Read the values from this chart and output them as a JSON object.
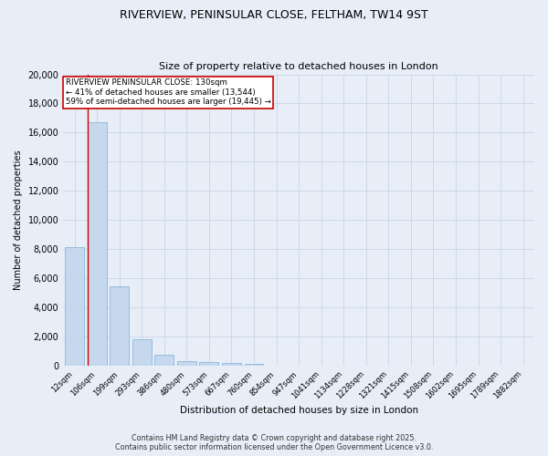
{
  "title_line1": "RIVERVIEW, PENINSULAR CLOSE, FELTHAM, TW14 9ST",
  "title_line2": "Size of property relative to detached houses in London",
  "xlabel": "Distribution of detached houses by size in London",
  "ylabel": "Number of detached properties",
  "bar_color": "#c5d8ee",
  "bar_edge_color": "#7aafd4",
  "categories": [
    "12sqm",
    "106sqm",
    "199sqm",
    "293sqm",
    "386sqm",
    "480sqm",
    "573sqm",
    "667sqm",
    "760sqm",
    "854sqm",
    "947sqm",
    "1041sqm",
    "1134sqm",
    "1228sqm",
    "1321sqm",
    "1415sqm",
    "1508sqm",
    "1602sqm",
    "1695sqm",
    "1789sqm",
    "1882sqm"
  ],
  "values": [
    8100,
    16700,
    5400,
    1800,
    700,
    300,
    200,
    130,
    80,
    0,
    0,
    0,
    0,
    0,
    0,
    0,
    0,
    0,
    0,
    0,
    0
  ],
  "property_label": "RIVERVIEW PENINSULAR CLOSE: 130sqm",
  "pct_smaller": 41,
  "n_smaller": "13,544",
  "pct_larger": 59,
  "n_larger": "19,445",
  "vline_x_index": 1,
  "annotation_box_color": "#ffffff",
  "annotation_box_edge_color": "#cc0000",
  "vline_color": "#cc0000",
  "grid_color": "#c8d4e4",
  "background_color": "#e8eef8",
  "ylim": [
    0,
    20000
  ],
  "yticks": [
    0,
    2000,
    4000,
    6000,
    8000,
    10000,
    12000,
    14000,
    16000,
    18000,
    20000
  ],
  "footer_line1": "Contains HM Land Registry data © Crown copyright and database right 2025.",
  "footer_line2": "Contains public sector information licensed under the Open Government Licence v3.0."
}
